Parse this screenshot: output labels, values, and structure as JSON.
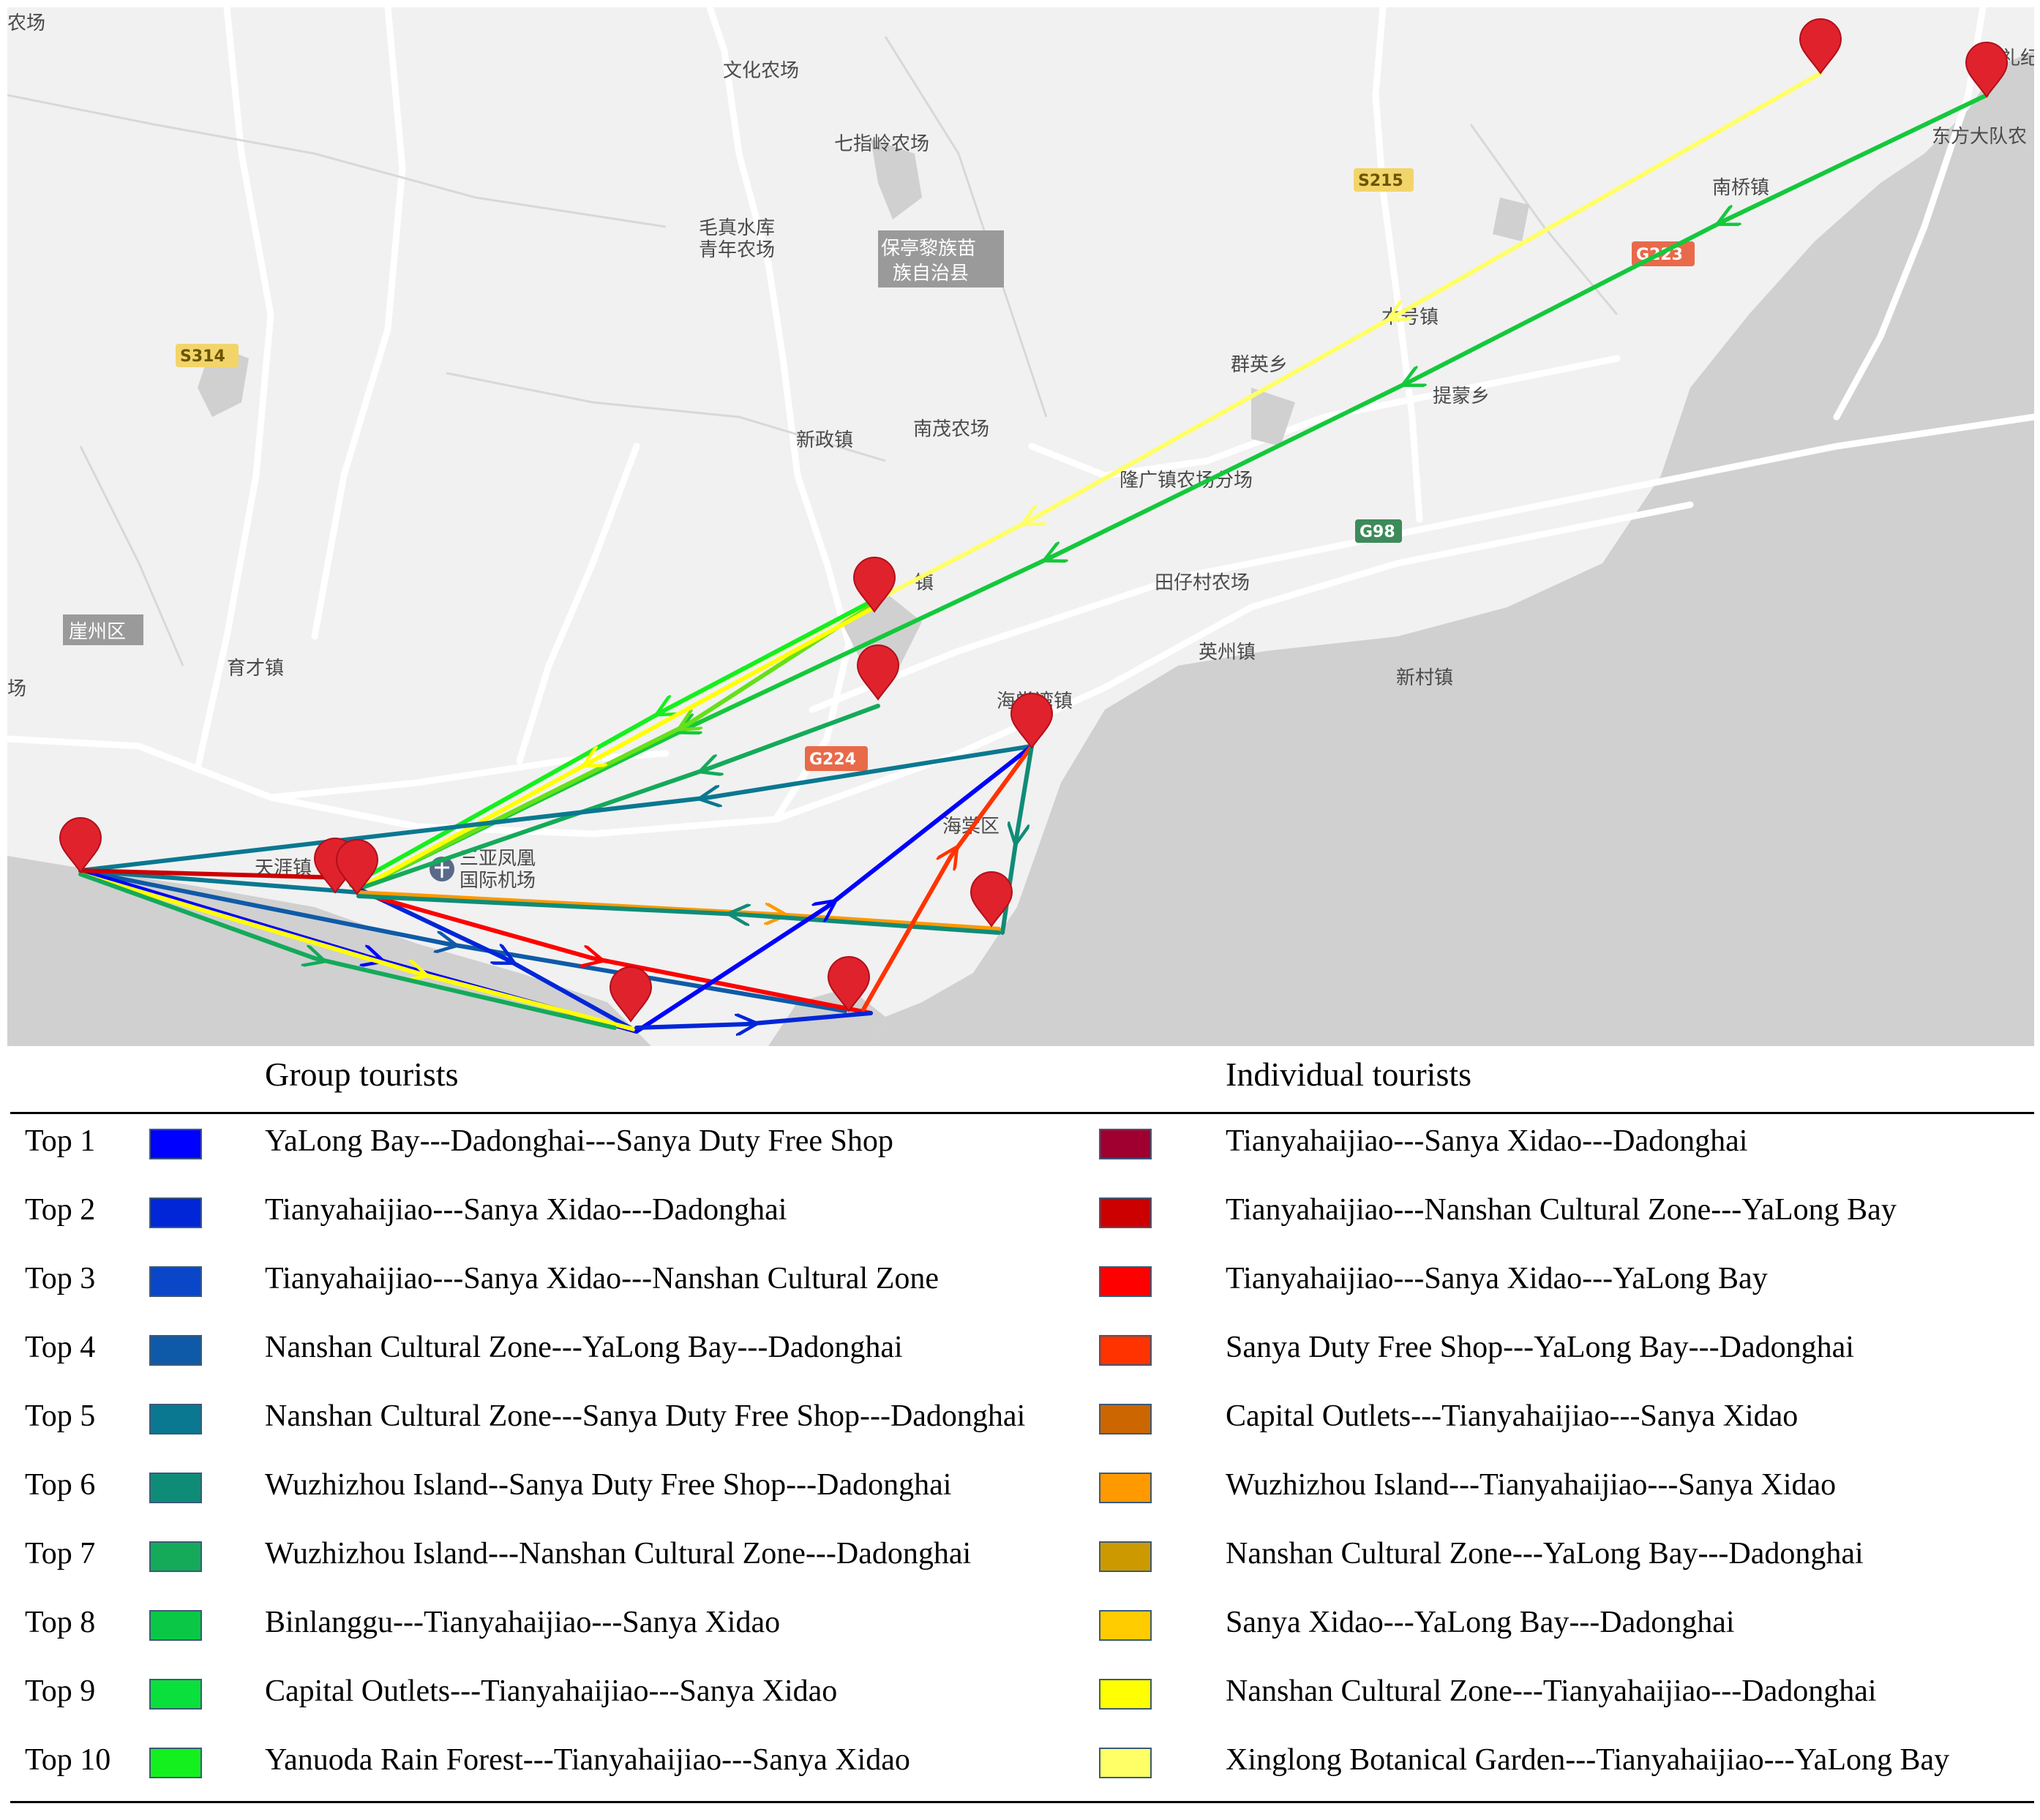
{
  "map": {
    "place_labels": [
      "农场",
      "文化农场",
      "七指岭农场",
      "毛真水库",
      "青年农场",
      "保亭黎族苗",
      "族自治县",
      "本号镇",
      "群英乡",
      "提蒙乡",
      "新政镇",
      "南茂农场",
      "隆广镇农场分场",
      "田仔村农场",
      "英州镇",
      "新村镇",
      "海棠湾镇",
      "崖州区",
      "育才镇",
      "天涯镇",
      "三亚凤凰",
      "国际机场",
      "海棠区",
      "南桥镇",
      "东方大队农",
      "礼纪",
      "镇",
      "场"
    ],
    "road_signs": [
      "S215",
      "G223",
      "S314",
      "G98",
      "G224"
    ],
    "colors": {
      "land": "#f1f1f1",
      "sea": "#d0d0d0",
      "road": "#ffffff",
      "marker": "#e0222c"
    }
  },
  "legend": {
    "group_header": "Group tourists",
    "individual_header": "Individual tourists",
    "rows": [
      {
        "rank": "Top 1",
        "group_color": "#0000ff",
        "group_route": "YaLong Bay---Dadonghai---Sanya Duty Free Shop",
        "ind_color": "#a00030",
        "ind_route": "Tianyahaijiao---Sanya Xidao---Dadonghai"
      },
      {
        "rank": "Top 2",
        "group_color": "#0026d8",
        "group_route": "Tianyahaijiao---Sanya Xidao---Dadonghai",
        "ind_color": "#cc0000",
        "ind_route": "Tianyahaijiao---Nanshan Cultural Zone---YaLong Bay"
      },
      {
        "rank": "Top 3",
        "group_color": "#0a46c8",
        "group_route": "Tianyahaijiao---Sanya Xidao---Nanshan Cultural Zone",
        "ind_color": "#ff0000",
        "ind_route": "Tianyahaijiao---Sanya Xidao---YaLong Bay"
      },
      {
        "rank": "Top 4",
        "group_color": "#0f5aa8",
        "group_route": "Nanshan Cultural Zone---YaLong Bay---Dadonghai",
        "ind_color": "#ff3300",
        "ind_route": "Sanya Duty Free Shop---YaLong Bay---Dadonghai"
      },
      {
        "rank": "Top 5",
        "group_color": "#0a7890",
        "group_route": "Nanshan Cultural Zone---Sanya Duty Free Shop---Dadonghai",
        "ind_color": "#cc6600",
        "ind_route": "Capital Outlets---Tianyahaijiao---Sanya Xidao"
      },
      {
        "rank": "Top 6",
        "group_color": "#0f8c78",
        "group_route": "Wuzhizhou Island--Sanya Duty Free Shop---Dadonghai",
        "ind_color": "#ff9900",
        "ind_route": "Wuzhizhou Island---Tianyahaijiao---Sanya Xidao"
      },
      {
        "rank": "Top 7",
        "group_color": "#14aa5a",
        "group_route": "Wuzhizhou Island---Nanshan Cultural Zone---Dadonghai",
        "ind_color": "#cc9900",
        "ind_route": "Nanshan Cultural Zone---YaLong Bay---Dadonghai"
      },
      {
        "rank": "Top 8",
        "group_color": "#0ac846",
        "group_route": "Binlanggu---Tianyahaijiao---Sanya Xidao",
        "ind_color": "#ffcc00",
        "ind_route": "Sanya Xidao---YaLong Bay---Dadonghai"
      },
      {
        "rank": "Top 9",
        "group_color": "#0ae03c",
        "group_route": "Capital Outlets---Tianyahaijiao---Sanya Xidao",
        "ind_color": "#ffff00",
        "ind_route": "Nanshan Cultural Zone---Tianyahaijiao---Dadonghai"
      },
      {
        "rank": "Top 10",
        "group_color": "#14f01e",
        "group_route": "Yanuoda Rain Forest---Tianyahaijiao---Sanya Xidao",
        "ind_color": "#ffff66",
        "ind_route": "Xinglong Botanical Garden---Tianyahaijiao---YaLong Bay"
      }
    ]
  }
}
